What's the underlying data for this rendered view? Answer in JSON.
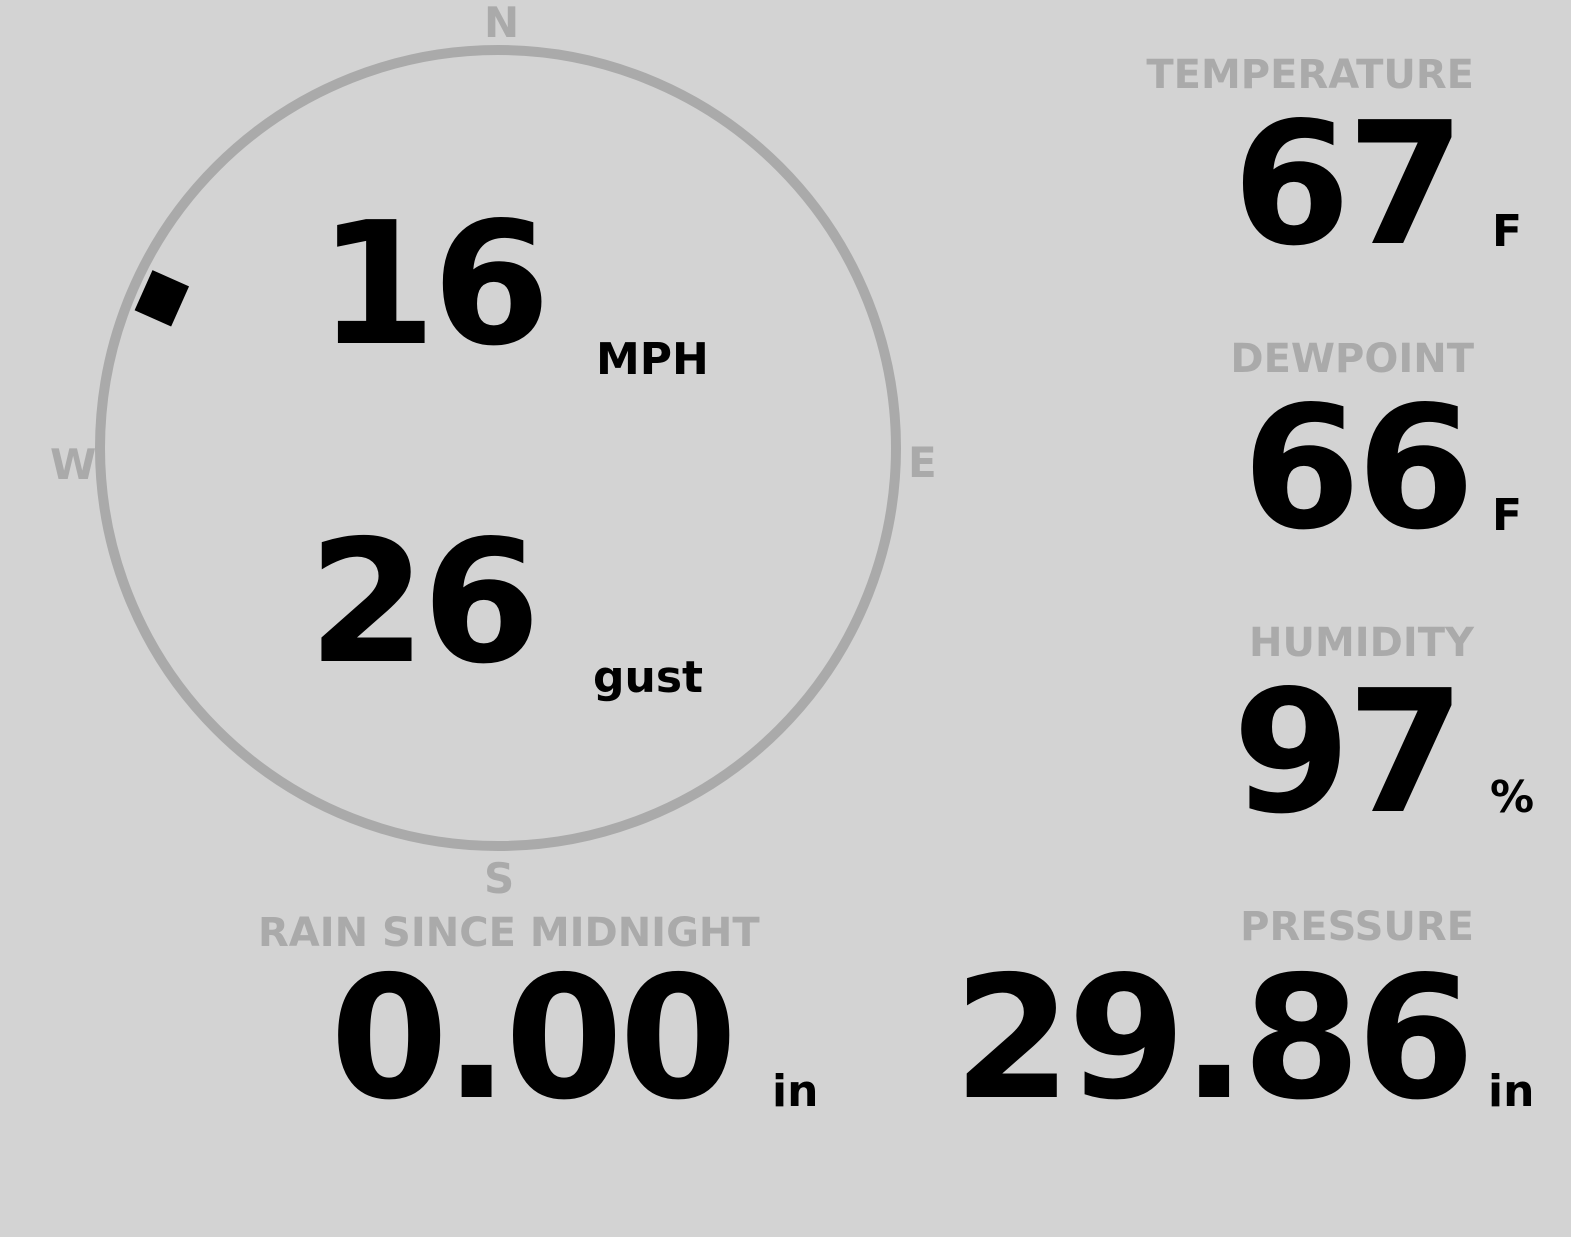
{
  "wind": {
    "compass": {
      "n": "N",
      "e": "E",
      "s": "S",
      "w": "W"
    },
    "speed": "16",
    "speed_unit": "MPH",
    "gust": "26",
    "gust_unit": "gust",
    "direction_deg": 294
  },
  "temperature": {
    "label": "TEMPERATURE",
    "value": "67",
    "unit": "F"
  },
  "dewpoint": {
    "label": "DEWPOINT",
    "value": "66",
    "unit": "F"
  },
  "humidity": {
    "label": "HUMIDITY",
    "value": "97",
    "unit": "%"
  },
  "rain": {
    "label": "RAIN SINCE MIDNIGHT",
    "value": "0.00",
    "unit": "in"
  },
  "pressure": {
    "label": "PRESSURE",
    "value": "29.86",
    "unit": "in"
  },
  "colors": {
    "background": "#d3d3d3",
    "dial": "#aaaaaa",
    "value": "#000000"
  }
}
